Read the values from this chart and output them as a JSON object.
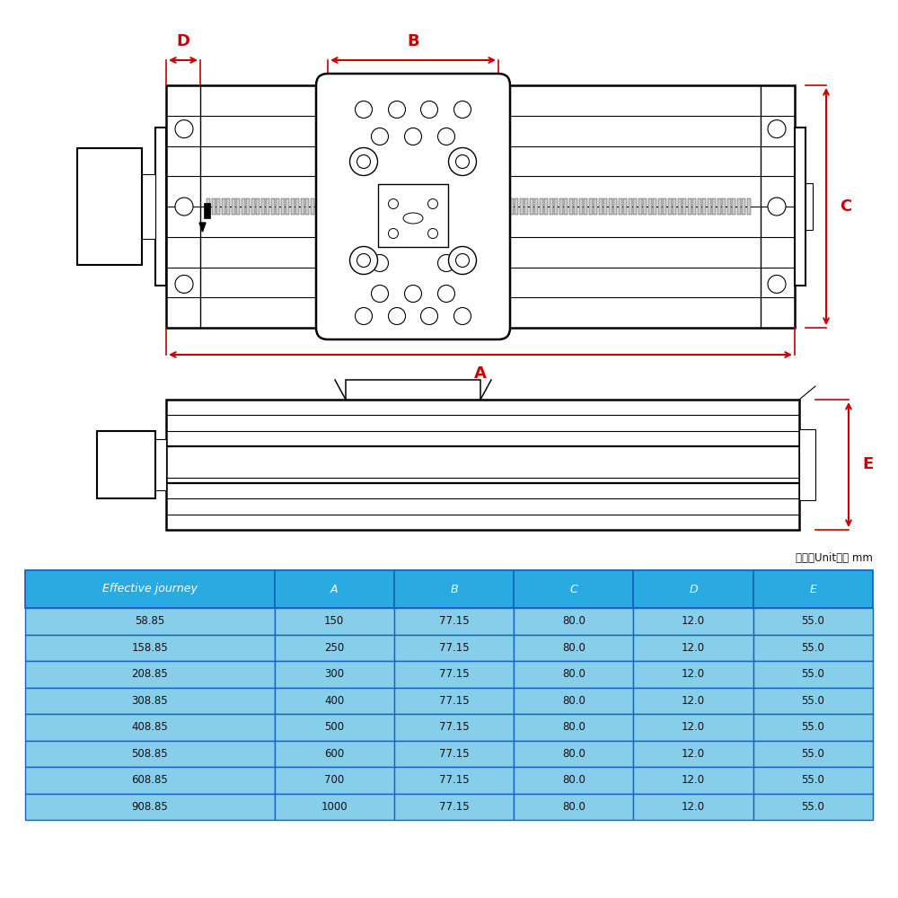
{
  "table_headers": [
    "Effective journey",
    "A",
    "B",
    "C",
    "D",
    "E"
  ],
  "table_rows": [
    [
      "58.85",
      "150",
      "77.15",
      "80.0",
      "12.0",
      "55.0"
    ],
    [
      "158.85",
      "250",
      "77.15",
      "80.0",
      "12.0",
      "55.0"
    ],
    [
      "208.85",
      "300",
      "77.15",
      "80.0",
      "12.0",
      "55.0"
    ],
    [
      "308.85",
      "400",
      "77.15",
      "80.0",
      "12.0",
      "55.0"
    ],
    [
      "408.85",
      "500",
      "77.15",
      "80.0",
      "12.0",
      "55.0"
    ],
    [
      "508.85",
      "600",
      "77.15",
      "80.0",
      "12.0",
      "55.0"
    ],
    [
      "608.85",
      "700",
      "77.15",
      "80.0",
      "12.0",
      "55.0"
    ],
    [
      "908.85",
      "1000",
      "77.15",
      "80.0",
      "12.0",
      "55.0"
    ]
  ],
  "header_bg": "#29ABE2",
  "row_bg_light": "#87CEEB",
  "row_bg_dark": "#5BB8D4",
  "border_color": "#1565C0",
  "header_text_color": "#FFFFFF",
  "row_text_color": "#111111",
  "unit_text": "单位（Unit）： mm",
  "dim_color": "#CC0000",
  "drawing_line_color": "#000000",
  "bg_color": "#FFFFFF",
  "col_widths_ratio": [
    2.5,
    1.2,
    1.2,
    1.2,
    1.2,
    1.2
  ]
}
